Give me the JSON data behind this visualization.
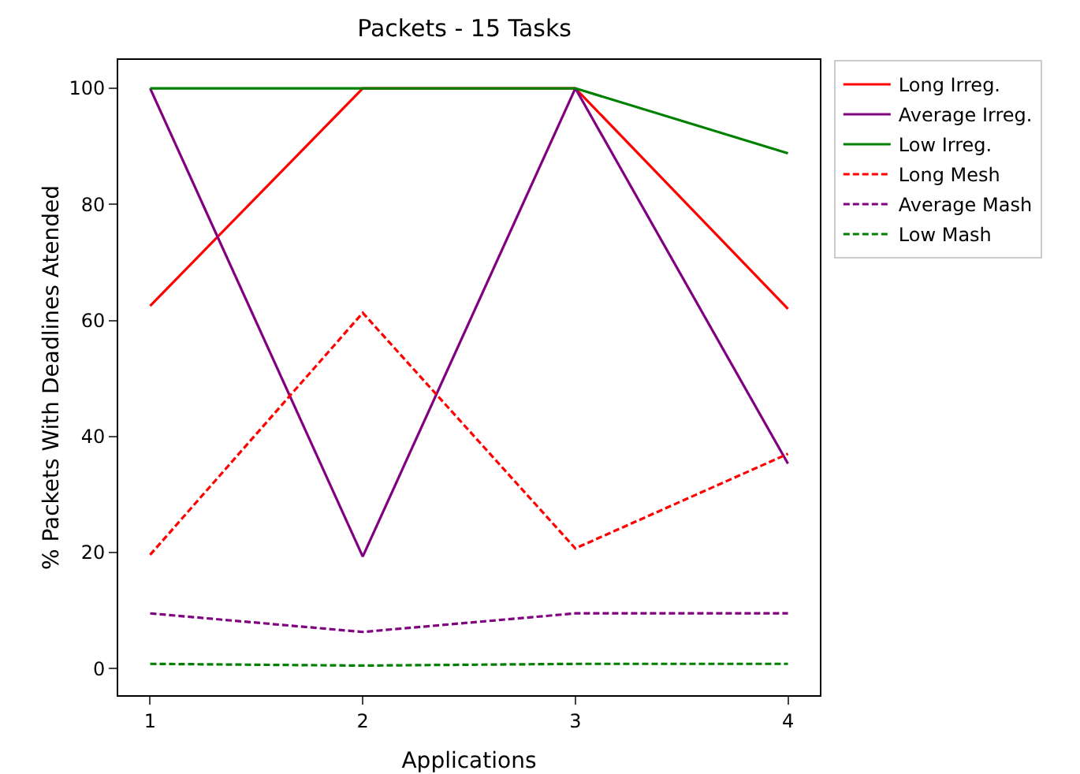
{
  "chart_data": {
    "type": "line",
    "title": "Packets - 15 Tasks",
    "xlabel": "Applications",
    "ylabel": "% Packets With Deadlines Atended",
    "x": [
      1,
      2,
      3,
      4
    ],
    "xlim": [
      0.85,
      4.15
    ],
    "xticks": [
      1,
      2,
      3,
      4
    ],
    "ylim": [
      -4.6,
      104.9
    ],
    "yticks": [
      0,
      20,
      40,
      60,
      80,
      100
    ],
    "grid": false,
    "legend": "right",
    "marker": "none",
    "series": [
      {
        "name": "Long Irreg.",
        "color": "#ff0000",
        "line_style": "solid",
        "values": [
          62.5,
          100,
          100,
          62
        ]
      },
      {
        "name": "Average Irreg.",
        "color": "#800080",
        "line_style": "solid",
        "values": [
          100,
          19.3,
          100,
          35.3
        ]
      },
      {
        "name": "Low Irreg.",
        "color": "#008000",
        "line_style": "solid",
        "values": [
          100,
          100,
          100,
          88.8
        ]
      },
      {
        "name": "Long Mesh",
        "color": "#ff0000",
        "line_style": "dashed",
        "values": [
          19.6,
          61.3,
          20.7,
          37
        ]
      },
      {
        "name": "Average Mash",
        "color": "#800080",
        "line_style": "dashed",
        "values": [
          9.5,
          6.3,
          9.5,
          9.5
        ]
      },
      {
        "name": "Low Mash",
        "color": "#008000",
        "line_style": "dashed",
        "values": [
          0.8,
          0.5,
          0.8,
          0.8
        ]
      }
    ]
  }
}
